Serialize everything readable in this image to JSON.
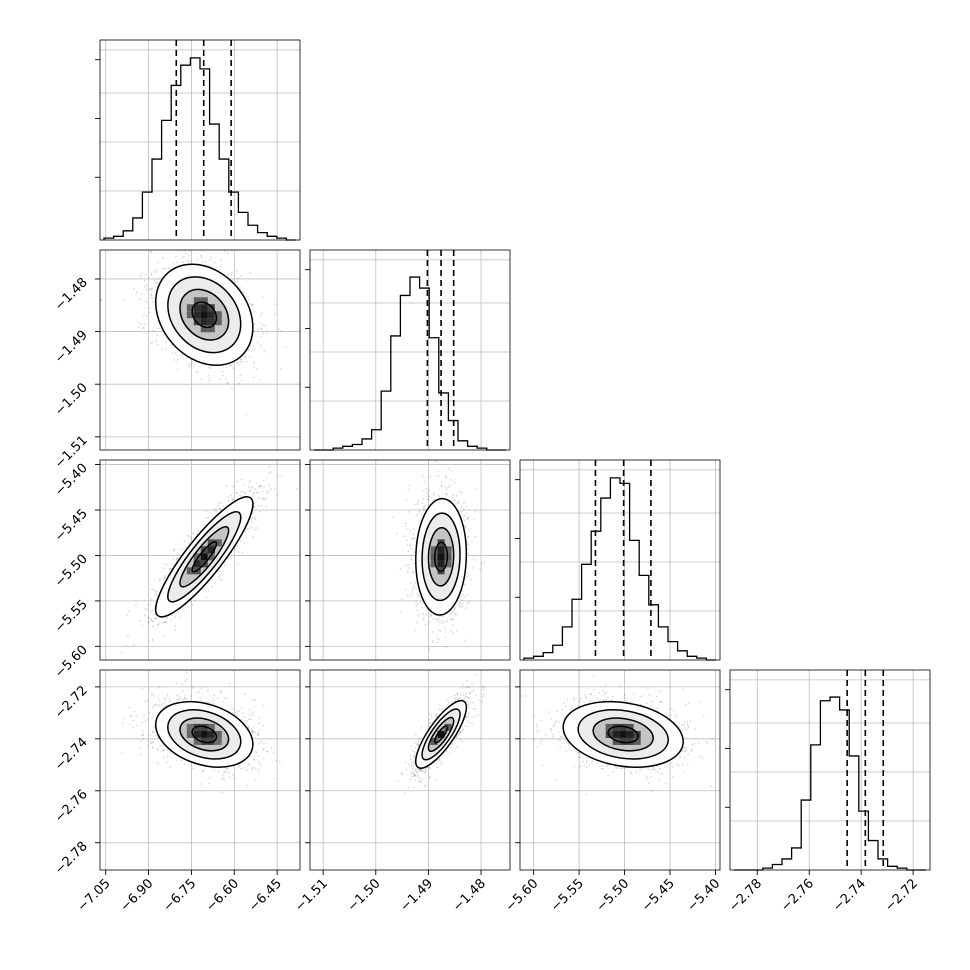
{
  "chart_data": {
    "type": "corner",
    "parameters": [
      {
        "range": [
          -7.07,
          -6.37
        ],
        "ticks": [
          -7.05,
          -6.9,
          -6.75,
          -6.6,
          -6.45
        ],
        "tick_labels": [
          "−7.05",
          "−6.90",
          "−6.75",
          "−6.60",
          "−6.45"
        ],
        "quantiles": [
          -6.803,
          -6.707,
          -6.611
        ]
      },
      {
        "range": [
          -1.5125,
          -1.4745
        ],
        "ticks": [
          -1.51,
          -1.5,
          -1.49,
          -1.48
        ],
        "tick_labels": [
          "−1.51",
          "−1.50",
          "−1.49",
          "−1.48"
        ],
        "quantiles": [
          -1.4902,
          -1.4876,
          -1.4852
        ]
      },
      {
        "range": [
          -5.615,
          -5.395
        ],
        "ticks": [
          -5.6,
          -5.55,
          -5.5,
          -5.45,
          -5.4
        ],
        "tick_labels": [
          "−5.60",
          "−5.55",
          "−5.50",
          "−5.45",
          "−5.40"
        ],
        "quantiles": [
          -5.532,
          -5.501,
          -5.471
        ]
      },
      {
        "range": [
          -2.7905,
          -2.7135
        ],
        "ticks": [
          -2.78,
          -2.76,
          -2.74,
          -2.72
        ],
        "tick_labels": [
          "−2.78",
          "−2.76",
          "−2.74",
          "−2.72"
        ],
        "quantiles": [
          -2.7454,
          -2.7384,
          -2.7315
        ]
      }
    ],
    "histograms": [
      {
        "param": 0,
        "bins": 20,
        "values": [
          0.01,
          0.02,
          0.05,
          0.12,
          0.26,
          0.44,
          0.65,
          0.84,
          0.95,
          0.99,
          0.93,
          0.63,
          0.44,
          0.26,
          0.15,
          0.08,
          0.04,
          0.02,
          0.01,
          0.0
        ]
      },
      {
        "param": 1,
        "bins": 20,
        "values": [
          0.0,
          0.0,
          0.01,
          0.02,
          0.03,
          0.06,
          0.11,
          0.32,
          0.62,
          0.84,
          0.94,
          0.88,
          0.61,
          0.31,
          0.16,
          0.05,
          0.02,
          0.01,
          0.0,
          0.0
        ]
      },
      {
        "param": 2,
        "bins": 20,
        "values": [
          0.01,
          0.02,
          0.04,
          0.08,
          0.18,
          0.33,
          0.52,
          0.7,
          0.88,
          0.99,
          0.96,
          0.65,
          0.46,
          0.3,
          0.18,
          0.1,
          0.05,
          0.02,
          0.01,
          0.0
        ]
      },
      {
        "param": 3,
        "bins": 20,
        "values": [
          0.0,
          0.0,
          0.0,
          0.01,
          0.03,
          0.06,
          0.12,
          0.38,
          0.68,
          0.92,
          0.94,
          0.87,
          0.62,
          0.32,
          0.16,
          0.06,
          0.02,
          0.01,
          0.0,
          0.0
        ]
      }
    ],
    "pairs": [
      {
        "x": 0,
        "y": 1,
        "center": [
          -6.705,
          -1.4868
        ],
        "sigma": [
          0.085,
          0.0048
        ],
        "rho": -0.25
      },
      {
        "x": 0,
        "y": 2,
        "center": [
          -6.705,
          -5.5015
        ],
        "sigma": [
          0.085,
          0.033
        ],
        "rho": 0.88
      },
      {
        "x": 1,
        "y": 2,
        "center": [
          -1.4876,
          -5.5015
        ],
        "sigma": [
          0.0024,
          0.032
        ],
        "rho": 0.05
      },
      {
        "x": 0,
        "y": 3,
        "center": [
          -6.705,
          -2.7383
        ],
        "sigma": [
          0.085,
          0.0063
        ],
        "rho": -0.3
      },
      {
        "x": 1,
        "y": 3,
        "center": [
          -1.4876,
          -2.7383
        ],
        "sigma": [
          0.0024,
          0.0065
        ],
        "rho": 0.8
      },
      {
        "x": 2,
        "y": 3,
        "center": [
          -5.5015,
          -2.7383
        ],
        "sigma": [
          0.033,
          0.0063
        ],
        "rho": -0.22
      }
    ],
    "contour_levels_sigma": [
      0.5,
      1.0,
      1.5,
      2.0
    ],
    "grid": true,
    "histogram_style": "step",
    "quantile_line_style": "dashed"
  }
}
